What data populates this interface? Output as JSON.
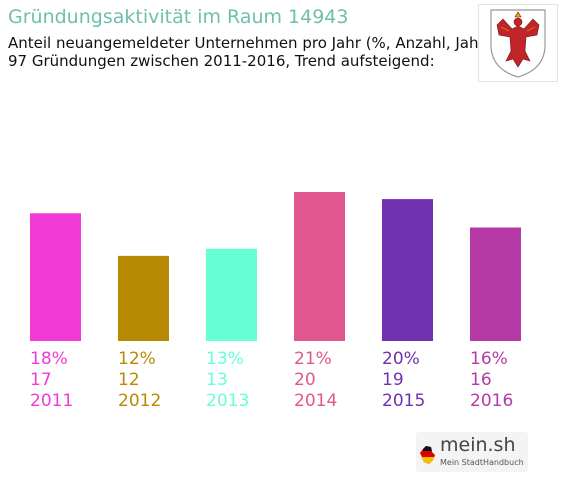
{
  "header": {
    "title": "Gründungsaktivität im Raum 14943",
    "subtitle_line1": "Anteil neuangemeldeter Unternehmen pro Jahr (%, Anzahl, Jahr)",
    "subtitle_line2": "97 Gründungen zwischen 2011-2016, Trend aufsteigend:"
  },
  "branding": {
    "name": "mein.sh",
    "tagline": "Mein StadtHandbuch"
  },
  "chart_data": {
    "type": "bar",
    "categories": [
      "2011",
      "2012",
      "2013",
      "2014",
      "2015",
      "2016"
    ],
    "values": [
      18,
      12,
      13,
      21,
      20,
      16
    ],
    "percent_labels": [
      "18%",
      "12%",
      "13%",
      "21%",
      "20%",
      "16%"
    ],
    "counts": [
      17,
      12,
      13,
      20,
      19,
      16
    ],
    "colors": [
      "#f23bd6",
      "#b88a04",
      "#66ffd6",
      "#e0578f",
      "#7031b0",
      "#b53aa5"
    ],
    "ylim": [
      0,
      21
    ],
    "grid": false,
    "legend": "none"
  }
}
